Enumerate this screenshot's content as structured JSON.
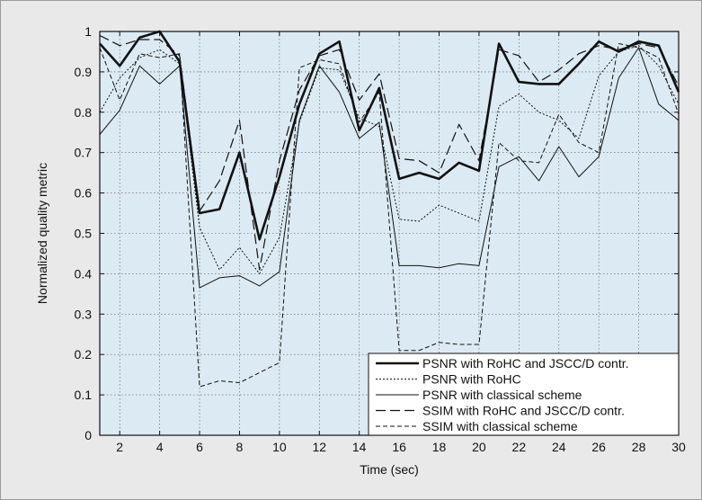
{
  "chart_data": {
    "type": "line",
    "title": "",
    "xlabel": "Time (sec)",
    "ylabel": "Normalized quality metric",
    "xlim": [
      1,
      30
    ],
    "ylim": [
      0,
      1
    ],
    "x_ticks": [
      2,
      4,
      6,
      8,
      10,
      12,
      14,
      16,
      18,
      20,
      22,
      24,
      26,
      28,
      30
    ],
    "y_ticks": [
      0,
      0.1,
      0.2,
      0.3,
      0.4,
      0.5,
      0.6,
      0.7,
      0.8,
      0.9,
      1
    ],
    "grid": true,
    "legend_position": "bottom-right",
    "plot_background": "#dcebf3",
    "x": [
      1,
      2,
      3,
      4,
      5,
      6,
      7,
      8,
      9,
      10,
      11,
      12,
      13,
      14,
      15,
      16,
      17,
      18,
      19,
      20,
      21,
      22,
      23,
      24,
      25,
      26,
      27,
      28,
      29,
      30
    ],
    "series": [
      {
        "name": "PSNR with RoHC and JSCC/D contr.",
        "style": "thick-solid",
        "values": [
          0.97,
          0.915,
          0.985,
          1.0,
          0.925,
          0.55,
          0.56,
          0.7,
          0.485,
          0.64,
          0.82,
          0.945,
          0.975,
          0.755,
          0.86,
          0.635,
          0.65,
          0.635,
          0.675,
          0.655,
          0.97,
          0.875,
          0.87,
          0.87,
          0.92,
          0.975,
          0.95,
          0.975,
          0.965,
          0.85
        ]
      },
      {
        "name": "PSNR with RoHC",
        "style": "dotted",
        "values": [
          0.8,
          0.885,
          0.935,
          0.955,
          0.92,
          0.515,
          0.41,
          0.465,
          0.4,
          0.49,
          0.775,
          0.91,
          0.905,
          0.785,
          0.765,
          0.535,
          0.53,
          0.57,
          0.55,
          0.53,
          0.815,
          0.845,
          0.8,
          0.78,
          0.735,
          0.89,
          0.95,
          0.965,
          0.915,
          0.82
        ]
      },
      {
        "name": "PSNR with classical scheme",
        "style": "thin-solid",
        "values": [
          0.745,
          0.805,
          0.915,
          0.87,
          0.915,
          0.365,
          0.39,
          0.395,
          0.37,
          0.405,
          0.78,
          0.915,
          0.85,
          0.735,
          0.775,
          0.42,
          0.42,
          0.415,
          0.425,
          0.42,
          0.665,
          0.69,
          0.63,
          0.715,
          0.64,
          0.69,
          0.885,
          0.96,
          0.82,
          0.78
        ]
      },
      {
        "name": "SSIM with RoHC and JSCC/D contr.",
        "style": "long-dash",
        "values": [
          0.99,
          0.965,
          0.98,
          0.98,
          0.94,
          0.555,
          0.63,
          0.78,
          0.41,
          0.68,
          0.855,
          0.94,
          0.955,
          0.83,
          0.895,
          0.685,
          0.68,
          0.65,
          0.77,
          0.68,
          0.955,
          0.94,
          0.875,
          0.905,
          0.945,
          0.965,
          0.955,
          0.97,
          0.96,
          0.865
        ]
      },
      {
        "name": "SSIM with classical scheme",
        "style": "short-dash",
        "values": [
          0.96,
          0.83,
          0.945,
          0.935,
          0.945,
          0.12,
          0.135,
          0.13,
          0.155,
          0.18,
          0.91,
          0.93,
          0.92,
          0.775,
          0.85,
          0.21,
          0.21,
          0.23,
          0.225,
          0.225,
          0.725,
          0.68,
          0.675,
          0.795,
          0.725,
          0.7,
          0.97,
          0.96,
          0.935,
          0.795
        ]
      }
    ]
  }
}
